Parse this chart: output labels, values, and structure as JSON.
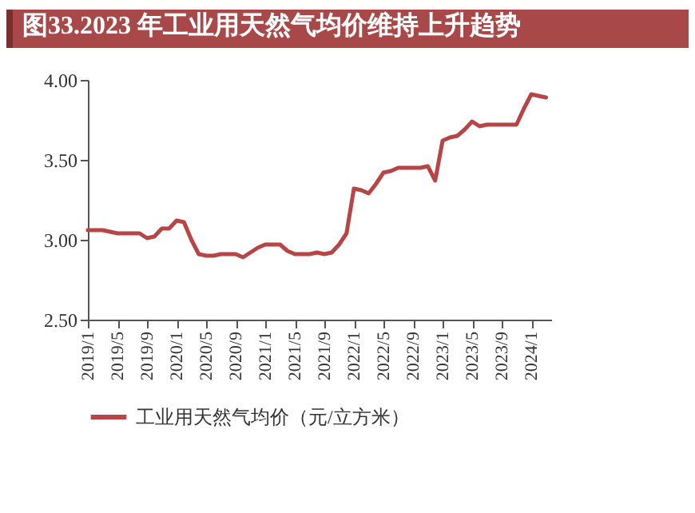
{
  "chart_data": {
    "type": "line",
    "title": "图33.2023 年工业用天然气均价维持上升趋势",
    "categories": [
      "2019/1",
      null,
      null,
      null,
      "2019/5",
      null,
      null,
      null,
      "2019/9",
      null,
      null,
      null,
      "2020/1",
      null,
      null,
      null,
      "2020/5",
      null,
      null,
      null,
      "2020/9",
      null,
      null,
      null,
      "2021/1",
      null,
      null,
      null,
      "2021/5",
      null,
      null,
      null,
      "2021/9",
      null,
      null,
      null,
      "2022/1",
      null,
      null,
      null,
      "2022/5",
      null,
      null,
      null,
      "2022/9",
      null,
      null,
      null,
      "2023/1",
      null,
      null,
      null,
      "2023/5",
      null,
      null,
      null,
      "2023/9",
      null,
      null,
      null,
      "2024/1",
      null,
      null
    ],
    "series": [
      {
        "name": "工业用天然气均价（元/立方米）",
        "color": "#b84545",
        "values": [
          3.06,
          3.06,
          3.06,
          3.05,
          3.04,
          3.04,
          3.04,
          3.04,
          3.01,
          3.02,
          3.07,
          3.07,
          3.12,
          3.11,
          3.0,
          2.91,
          2.9,
          2.9,
          2.91,
          2.91,
          2.91,
          2.89,
          2.92,
          2.95,
          2.97,
          2.97,
          2.97,
          2.93,
          2.91,
          2.91,
          2.91,
          2.92,
          2.91,
          2.92,
          2.97,
          3.04,
          3.32,
          3.31,
          3.29,
          3.35,
          3.42,
          3.43,
          3.45,
          3.45,
          3.45,
          3.45,
          3.46,
          3.37,
          3.62,
          3.64,
          3.65,
          3.69,
          3.74,
          3.71,
          3.72,
          3.72,
          3.72,
          3.72,
          3.72,
          3.82,
          3.91,
          3.9,
          3.89
        ]
      }
    ],
    "ylim": [
      2.5,
      4.0
    ],
    "yticks": [
      {
        "value": 2.5,
        "label": "2.50"
      },
      {
        "value": 3.0,
        "label": "3.00"
      },
      {
        "value": 3.5,
        "label": "3.50"
      },
      {
        "value": 4.0,
        "label": "4.00"
      }
    ],
    "grid": false,
    "legend": "bottom",
    "marker": "none",
    "line_style": "solid"
  }
}
